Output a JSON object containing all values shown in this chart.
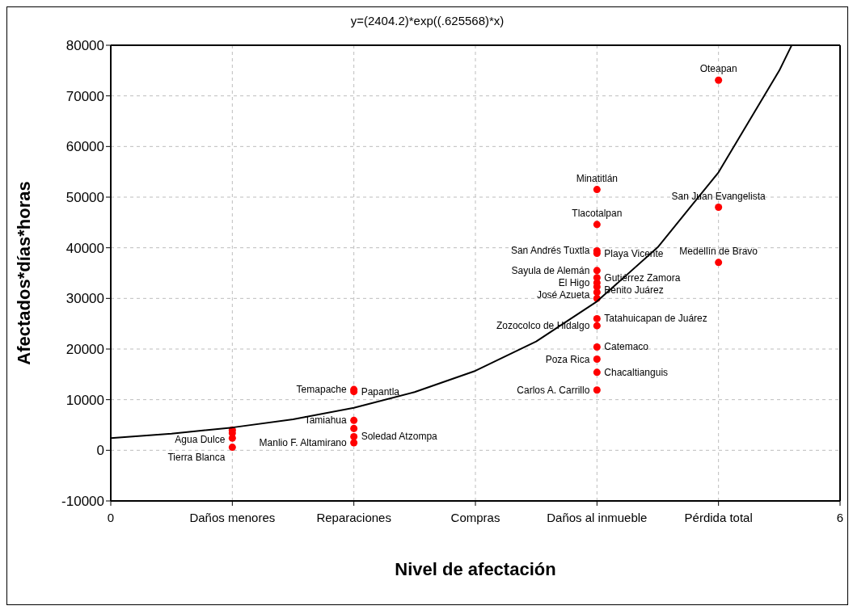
{
  "chart_data": {
    "type": "scatter",
    "title": "y=(2404.2)*exp((.625568)*x)",
    "xlabel": "Nivel de afectación",
    "ylabel": "Afectados*días*horas",
    "xlim": [
      0,
      6
    ],
    "xticks": [
      0,
      {
        "value": 1,
        "label": "Daños menores"
      },
      {
        "value": 2,
        "label": "Reparaciones"
      },
      {
        "value": 3,
        "label": "Compras"
      },
      {
        "value": 4,
        "label": "Daños al inmueble"
      },
      {
        "value": 5,
        "label": "Pérdida total"
      },
      6
    ],
    "ylim": [
      -10000,
      80000
    ],
    "yticks": [
      -10000,
      0,
      10000,
      20000,
      30000,
      40000,
      50000,
      60000,
      70000,
      80000
    ],
    "grid": true,
    "series": [
      {
        "color": "#ff0000",
        "marker": "circle",
        "x": [
          1,
          1,
          1,
          1,
          2,
          2,
          2,
          2,
          2,
          2,
          4,
          4,
          4,
          4,
          4,
          4,
          4,
          4,
          4,
          4,
          4,
          4,
          4,
          4,
          4,
          4,
          5,
          5,
          5
        ],
        "values": [
          4000,
          3400,
          2400,
          600,
          12000,
          11600,
          5900,
          4300,
          2700,
          1500,
          51500,
          44600,
          39400,
          38900,
          35500,
          34100,
          33100,
          32300,
          31200,
          30000,
          26000,
          24600,
          20400,
          18000,
          15400,
          11900,
          73100,
          48000,
          37100
        ]
      },
      {
        "type": "line",
        "color": "#000000",
        "marker": "none",
        "line_style": "solid",
        "x": [
          0,
          0.5,
          1,
          1.5,
          2,
          2.5,
          3,
          3.5,
          4,
          4.5,
          5,
          5.5,
          5.6
        ],
        "values": [
          2400,
          3300,
          4500,
          6100,
          8400,
          11500,
          15700,
          21500,
          29400,
          40100,
          54900,
          75000,
          79900
        ]
      }
    ],
    "annotations": [
      {
        "text": "Agua Dulce",
        "x": 1,
        "y": 4000
      },
      {
        "text": "Tierra Blanca",
        "x": 1,
        "y": 600
      },
      {
        "text": "Temapache",
        "x": 2,
        "y": 12000
      },
      {
        "text": "Papantla",
        "x": 2,
        "y": 11600
      },
      {
        "text": "Tamiahua",
        "x": 2,
        "y": 5900
      },
      {
        "text": "Soledad Atzompa",
        "x": 2,
        "y": 2700
      },
      {
        "text": "Manlio F. Altamirano",
        "x": 2,
        "y": 1500
      },
      {
        "text": "Minatitlán",
        "x": 4,
        "y": 51500
      },
      {
        "text": "Tlacotalpan",
        "x": 4,
        "y": 44600
      },
      {
        "text": "San Andrés Tuxtla",
        "x": 4,
        "y": 39400
      },
      {
        "text": "Playa Vicente",
        "x": 4,
        "y": 38900
      },
      {
        "text": "Sayula de Alemán",
        "x": 4,
        "y": 35500
      },
      {
        "text": "Gutiérrez Zamora",
        "x": 4,
        "y": 34100
      },
      {
        "text": "El Higo",
        "x": 4,
        "y": 33100
      },
      {
        "text": "Benito Juárez",
        "x": 4,
        "y": 32300
      },
      {
        "text": "José Azueta",
        "x": 4,
        "y": 31200
      },
      {
        "text": "Tatahuicapan de Juárez",
        "x": 4,
        "y": 26000
      },
      {
        "text": "Zozocolco de Hidalgo",
        "x": 4,
        "y": 24600
      },
      {
        "text": "Catemaco",
        "x": 4,
        "y": 20400
      },
      {
        "text": "Poza Rica",
        "x": 4,
        "y": 18000
      },
      {
        "text": "Chacaltianguis",
        "x": 4,
        "y": 15400
      },
      {
        "text": "Carlos A. Carrillo",
        "x": 4,
        "y": 11900
      },
      {
        "text": "Oteapan",
        "x": 5,
        "y": 73100
      },
      {
        "text": "San Juan Evangelista",
        "x": 5,
        "y": 48000
      },
      {
        "text": "Medellín de Bravo",
        "x": 5,
        "y": 37100
      }
    ]
  }
}
